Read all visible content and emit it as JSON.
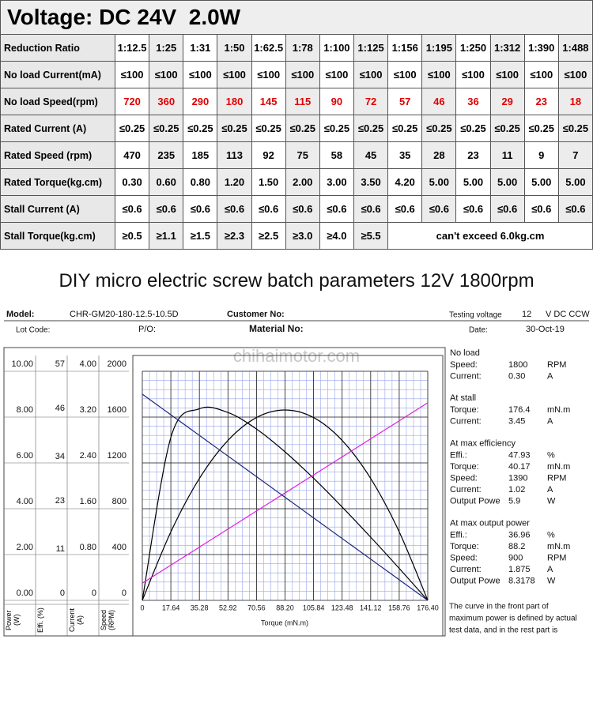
{
  "spec_table": {
    "title": "Voltage: DC 24V  2.0W",
    "rows": [
      {
        "label": "Reduction Ratio",
        "cells": [
          "1:12.5",
          "1:25",
          "1:31",
          "1:50",
          "1:62.5",
          "1:78",
          "1:100",
          "1:125",
          "1:156",
          "1:195",
          "1:250",
          "1:312",
          "1:390",
          "1:488"
        ]
      },
      {
        "label": "No load Current(mA)",
        "cells": [
          "≤100",
          "≤100",
          "≤100",
          "≤100",
          "≤100",
          "≤100",
          "≤100",
          "≤100",
          "≤100",
          "≤100",
          "≤100",
          "≤100",
          "≤100",
          "≤100"
        ]
      },
      {
        "label": "No load Speed(rpm)",
        "color": "#e00000",
        "cells": [
          720,
          360,
          290,
          180,
          145,
          115,
          90,
          72,
          57,
          46,
          36,
          29,
          23,
          18
        ]
      },
      {
        "label": "Rated Current  (A)",
        "cells": [
          "≤0.25",
          "≤0.25",
          "≤0.25",
          "≤0.25",
          "≤0.25",
          "≤0.25",
          "≤0.25",
          "≤0.25",
          "≤0.25",
          "≤0.25",
          "≤0.25",
          "≤0.25",
          "≤0.25",
          "≤0.25"
        ]
      },
      {
        "label": "Rated Speed  (rpm)",
        "cells": [
          470,
          235,
          185,
          113,
          92,
          75,
          58,
          45,
          35,
          28,
          23,
          11,
          9,
          7
        ]
      },
      {
        "label": "Rated Torque(kg.cm)",
        "cells": [
          "0.30",
          "0.60",
          "0.80",
          "1.20",
          "1.50",
          "2.00",
          "3.00",
          "3.50",
          "4.20",
          "5.00",
          "5.00",
          "5.00",
          "5.00",
          "5.00"
        ]
      },
      {
        "label": "Stall Current  (A)",
        "cells": [
          "≤0.6",
          "≤0.6",
          "≤0.6",
          "≤0.6",
          "≤0.6",
          "≤0.6",
          "≤0.6",
          "≤0.6",
          "≤0.6",
          "≤0.6",
          "≤0.6",
          "≤0.6",
          "≤0.6",
          "≤0.6"
        ]
      },
      {
        "label": "Stall Torque(kg.cm)",
        "cells": [
          "≥0.5",
          "≥1.1",
          "≥1.5",
          "≥2.3",
          "≥2.5",
          "≥3.0",
          "≥4.0",
          "≥5.5"
        ],
        "note": "can't exceed 6.0kg.cm"
      }
    ]
  },
  "section_title": "DIY micro electric screw batch parameters 12V 1800rpm",
  "test_sheet": {
    "model_label": "Model:",
    "model": "CHR-GM20-180-12.5-10.5D",
    "customer_label": "Customer No:",
    "voltage_label": "Testing voltage",
    "voltage": "12",
    "voltage_unit": "V DC CCW",
    "lot_label": "Lot Code:",
    "po_label": "P/O:",
    "material_label": "Material No:",
    "date_label": "Date:",
    "date": "30-Oct-19",
    "watermark": "chihaimotor.com",
    "results": [
      {
        "heading": "No load",
        "rows": [
          [
            "Speed:",
            "1800",
            "RPM"
          ],
          [
            "Current:",
            "0.30",
            "A"
          ]
        ]
      },
      {
        "heading": "At stall",
        "rows": [
          [
            "Torque:",
            "176.4",
            "mN.m"
          ],
          [
            "Current:",
            "3.45",
            "A"
          ]
        ]
      },
      {
        "heading": "At max efficiency",
        "rows": [
          [
            "Effi.:",
            "47.93",
            "%"
          ],
          [
            "Torque:",
            "40.17",
            "mN.m"
          ],
          [
            "Speed:",
            "1390",
            "RPM"
          ],
          [
            "Current:",
            "1.02",
            "A"
          ],
          [
            "Output Powe",
            "5.9",
            "W"
          ]
        ]
      },
      {
        "heading": "At max output power",
        "rows": [
          [
            "Effi.:",
            "36.96",
            "%"
          ],
          [
            "Torque:",
            "88.2",
            "mN.m"
          ],
          [
            "Speed:",
            "900",
            "RPM"
          ],
          [
            "Current:",
            "1.875",
            "A"
          ],
          [
            "Output Powe",
            "8.3178",
            "W"
          ]
        ]
      }
    ],
    "note": [
      "The curve in the front part of",
      "maximum power is defined by actual",
      "test data, and in the rest part is"
    ]
  },
  "chart_data": {
    "type": "line",
    "x_label": "Torque (mN.m)",
    "x": [
      0,
      17.64,
      35.28,
      52.92,
      70.56,
      88.2,
      105.84,
      123.48,
      141.12,
      158.76,
      176.4
    ],
    "xlim": [
      0,
      176.4
    ],
    "xticks": [
      0,
      17.64,
      35.28,
      52.92,
      70.56,
      {
        "value": 88.2,
        "label": "88.20"
      },
      105.84,
      123.48,
      141.12,
      158.76,
      {
        "value": 176.4,
        "label": "176.40"
      }
    ],
    "grid": true,
    "series": [
      {
        "name": "Power (W)",
        "color": "#000000",
        "values": [
          0,
          2.99,
          5.32,
          6.98,
          7.98,
          8.31,
          7.98,
          6.98,
          5.32,
          2.99,
          0
        ],
        "ylim": [
          0,
          10
        ],
        "yticks": [
          {
            "value": 10,
            "label": "10.00"
          },
          {
            "value": 8,
            "label": "8.00"
          },
          {
            "value": 6,
            "label": "6.00"
          },
          {
            "value": 4,
            "label": "4.00"
          },
          {
            "value": 2,
            "label": "2.00"
          },
          {
            "value": 0,
            "label": "0.00"
          }
        ]
      },
      {
        "name": "Effi. (%)",
        "color": "#000000",
        "values": [
          0,
          40.56,
          47.67,
          46.74,
          42.63,
          36.95,
          30.37,
          23.23,
          15.72,
          7.96,
          0
        ],
        "ylim": [
          0,
          57
        ],
        "yticks": [
          57,
          46,
          34,
          23,
          11,
          0
        ]
      },
      {
        "name": "Current (A)",
        "color": "#e020e0",
        "values": [
          0.3,
          0.615,
          0.93,
          1.245,
          1.56,
          1.875,
          2.19,
          2.505,
          2.82,
          3.135,
          3.45
        ],
        "ylim": [
          0,
          4
        ],
        "yticks": [
          {
            "value": 4,
            "label": "4.00"
          },
          {
            "value": 3.2,
            "label": "3.20"
          },
          {
            "value": 2.4,
            "label": "2.40"
          },
          {
            "value": 1.6,
            "label": "1.60"
          },
          {
            "value": 0.8,
            "label": "0.80"
          },
          0
        ]
      },
      {
        "name": "Speed (RPM)",
        "color": "#1a237e",
        "values": [
          1800,
          1620,
          1440,
          1260,
          1080,
          900,
          720,
          540,
          360,
          180,
          0
        ],
        "ylim": [
          0,
          2000
        ],
        "yticks": [
          2000,
          1600,
          1200,
          800,
          400,
          0
        ]
      }
    ]
  }
}
